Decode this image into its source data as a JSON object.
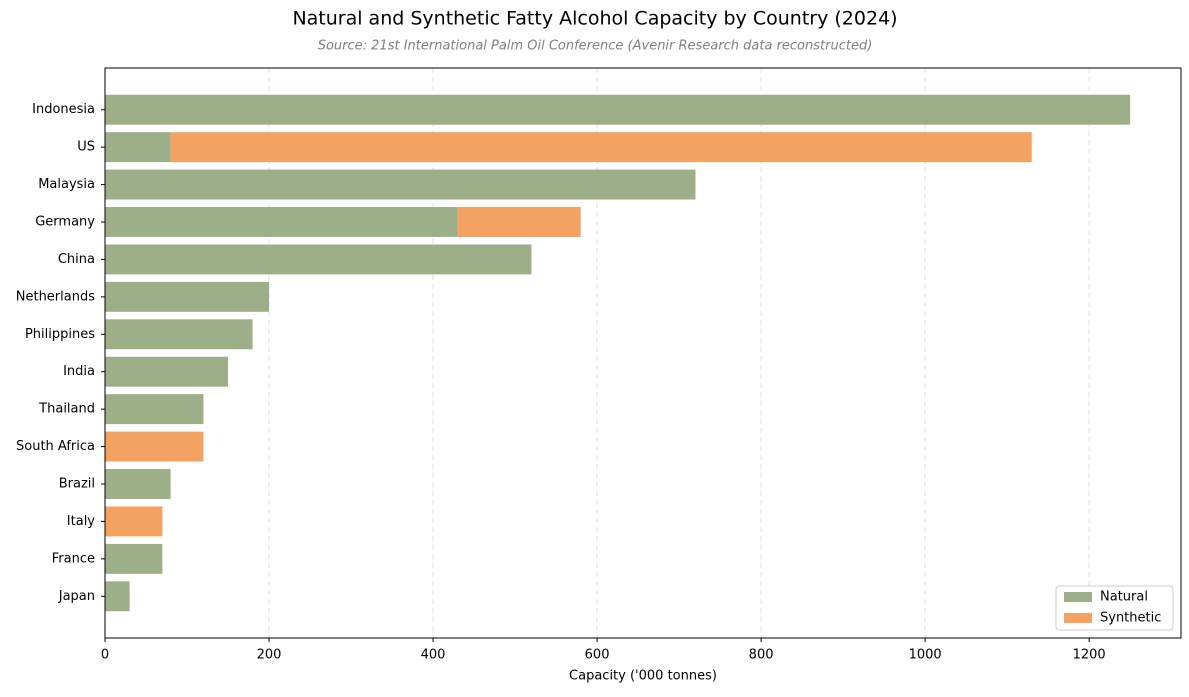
{
  "chart_data": {
    "type": "stacked-barh",
    "title": "Natural and Synthetic Fatty Alcohol Capacity by Country (2024)",
    "subtitle": "Source: 21st International Palm Oil Conference (Avenir Research data reconstructed)",
    "x_label": "Capacity ('000 tonnes)",
    "categories": [
      "Indonesia",
      "US",
      "Malaysia",
      "Germany",
      "China",
      "Netherlands",
      "Philippines",
      "India",
      "Thailand",
      "South Africa",
      "Brazil",
      "Italy",
      "France",
      "Japan"
    ],
    "series": [
      {
        "name": "Natural",
        "color": "#9caf88",
        "values": [
          1250,
          80,
          720,
          430,
          520,
          200,
          180,
          150,
          120,
          0,
          80,
          0,
          70,
          30
        ]
      },
      {
        "name": "Synthetic",
        "color": "#f4a261",
        "values": [
          0,
          1050,
          0,
          150,
          0,
          0,
          0,
          0,
          0,
          120,
          0,
          70,
          0,
          0
        ]
      }
    ],
    "xlim": [
      0,
      1312
    ],
    "xticks": [
      0,
      200,
      400,
      600,
      800,
      1000,
      1200
    ],
    "grid": true,
    "legend": "lower-right"
  }
}
